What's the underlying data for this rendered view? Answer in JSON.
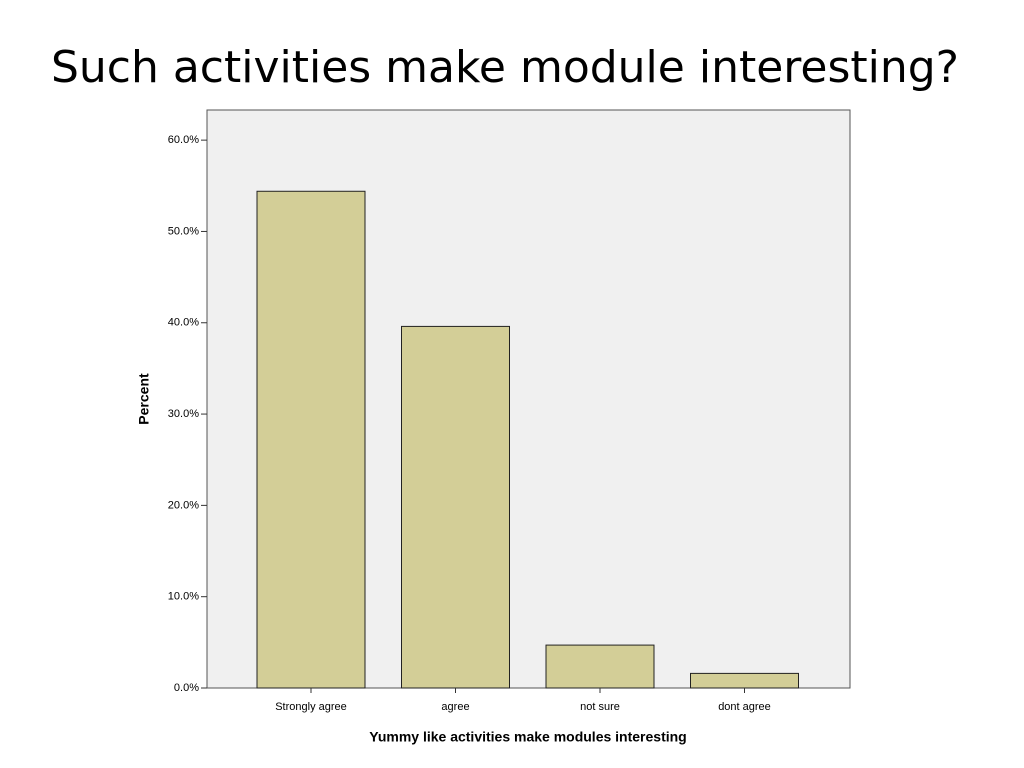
{
  "chart_data": {
    "type": "bar",
    "title": "Such activities make module interesting?",
    "x_label": "Yummy like activities make modules interesting",
    "y_label": "Percent",
    "categories": [
      "Strongly agree",
      "agree",
      "not sure",
      "dont agree"
    ],
    "values": [
      54.4,
      39.6,
      4.7,
      1.6
    ],
    "color": "#d3ce97",
    "ylim": [
      0,
      63.3
    ],
    "yticks": [
      {
        "value": 0,
        "label": "0.0%"
      },
      {
        "value": 10,
        "label": "10.0%"
      },
      {
        "value": 20,
        "label": "20.0%"
      },
      {
        "value": 30,
        "label": "30.0%"
      },
      {
        "value": 40,
        "label": "40.0%"
      },
      {
        "value": 50,
        "label": "50.0%"
      },
      {
        "value": 60,
        "label": "60.0%"
      }
    ],
    "grid": false
  }
}
